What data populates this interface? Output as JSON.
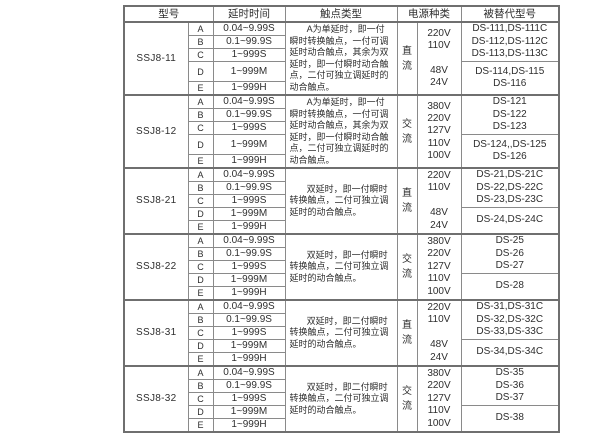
{
  "table": {
    "headers": {
      "model": "型号",
      "delay": "延时时间",
      "contact": "触点类型",
      "power": "电源种类",
      "replaced": "被替代型号"
    },
    "groups": [
      {
        "model": "SSJ8-11",
        "letters": [
          "A",
          "B",
          "C",
          "D",
          "E"
        ],
        "delays": [
          "0.04~9.99S",
          "0.1~99.9S",
          "1~999S",
          "1~999M",
          "1~999H"
        ],
        "contact": "A为单延时，即一付瞬时转换触点，一付可调延时动合触点，其余为双延时，即一付瞬时动合触点，二付可独立调延时的动合触点。",
        "power_type": "直流",
        "voltages": [
          "220V",
          "110V",
          "",
          "48V",
          "24V"
        ],
        "replaced_top": [
          "DS-111,DS-111C",
          "DS-112,DS-112C",
          "DS-113,DS-113C"
        ],
        "replaced_bottom": [
          "DS-114,DS-115",
          "DS-116"
        ]
      },
      {
        "model": "SSJ8-12",
        "letters": [
          "A",
          "B",
          "C",
          "D",
          "E"
        ],
        "delays": [
          "0.04~9.99S",
          "0.1~99.9S",
          "1~999S",
          "1~999M",
          "1~999H"
        ],
        "contact": "A为单延时，即一付瞬时转换触点，一付可调延时动合触点，其余为双延时，即一付瞬时动合触点，二付可独立调延时的动合触点。",
        "power_type": "交流",
        "voltages": [
          "380V",
          "220V",
          "127V",
          "110V",
          "100V"
        ],
        "replaced_top": [
          "DS-121",
          "DS-122",
          "DS-123"
        ],
        "replaced_bottom": [
          "DS-124,,DS-125",
          "DS-126"
        ]
      },
      {
        "model": "SSJ8-21",
        "letters": [
          "A",
          "B",
          "C",
          "D",
          "E"
        ],
        "delays": [
          "0.04~9.99S",
          "0.1~99.9S",
          "1~999S",
          "1~999M",
          "1~999H"
        ],
        "contact": "双延时，即一付瞬时转换触点，二付可独立调延时的动合触点。",
        "power_type": "直流",
        "voltages": [
          "220V",
          "110V",
          "",
          "48V",
          "24V"
        ],
        "replaced_top": [
          "DS-21,DS-21C",
          "DS-22,DS-22C",
          "DS-23,DS-23C"
        ],
        "replaced_bottom": [
          "DS-24,DS-24C"
        ]
      },
      {
        "model": "SSJ8-22",
        "letters": [
          "A",
          "B",
          "C",
          "D",
          "E"
        ],
        "delays": [
          "0.04~9.99S",
          "0.1~99.9S",
          "1~999S",
          "1~999M",
          "1~999H"
        ],
        "contact": "双延时，即一付瞬时转换触点，二付可独立调延时的动合触点。",
        "power_type": "交流",
        "voltages": [
          "380V",
          "220V",
          "127V",
          "110V",
          "100V"
        ],
        "replaced_top": [
          "DS-25",
          "DS-26",
          "DS-27"
        ],
        "replaced_bottom": [
          "DS-28"
        ]
      },
      {
        "model": "SSJ8-31",
        "letters": [
          "A",
          "B",
          "C",
          "D",
          "E"
        ],
        "delays": [
          "0.04~9.99S",
          "0.1~99.9S",
          "1~999S",
          "1~999M",
          "1~999H"
        ],
        "contact": "双延时，即二付瞬时转换触点，二付可独立调延时的动合触点。",
        "power_type": "直流",
        "voltages": [
          "220V",
          "110V",
          "",
          "48V",
          "24V"
        ],
        "replaced_top": [
          "DS-31,DS-31C",
          "DS-32,DS-32C",
          "DS-33,DS-33C"
        ],
        "replaced_bottom": [
          "DS-34,DS-34C"
        ]
      },
      {
        "model": "SSJ8-32",
        "letters": [
          "A",
          "B",
          "C",
          "D",
          "E"
        ],
        "delays": [
          "0.04~9.99S",
          "0.1~99.9S",
          "1~999S",
          "1~999M",
          "1~999H"
        ],
        "contact": "双延时，即二付瞬时转换触点，二付可独立调延时的动合触点。",
        "power_type": "交流",
        "voltages": [
          "380V",
          "220V",
          "127V",
          "110V",
          "100V"
        ],
        "replaced_top": [
          "DS-35",
          "DS-36",
          "DS-37"
        ],
        "replaced_bottom": [
          "DS-38"
        ]
      }
    ]
  }
}
